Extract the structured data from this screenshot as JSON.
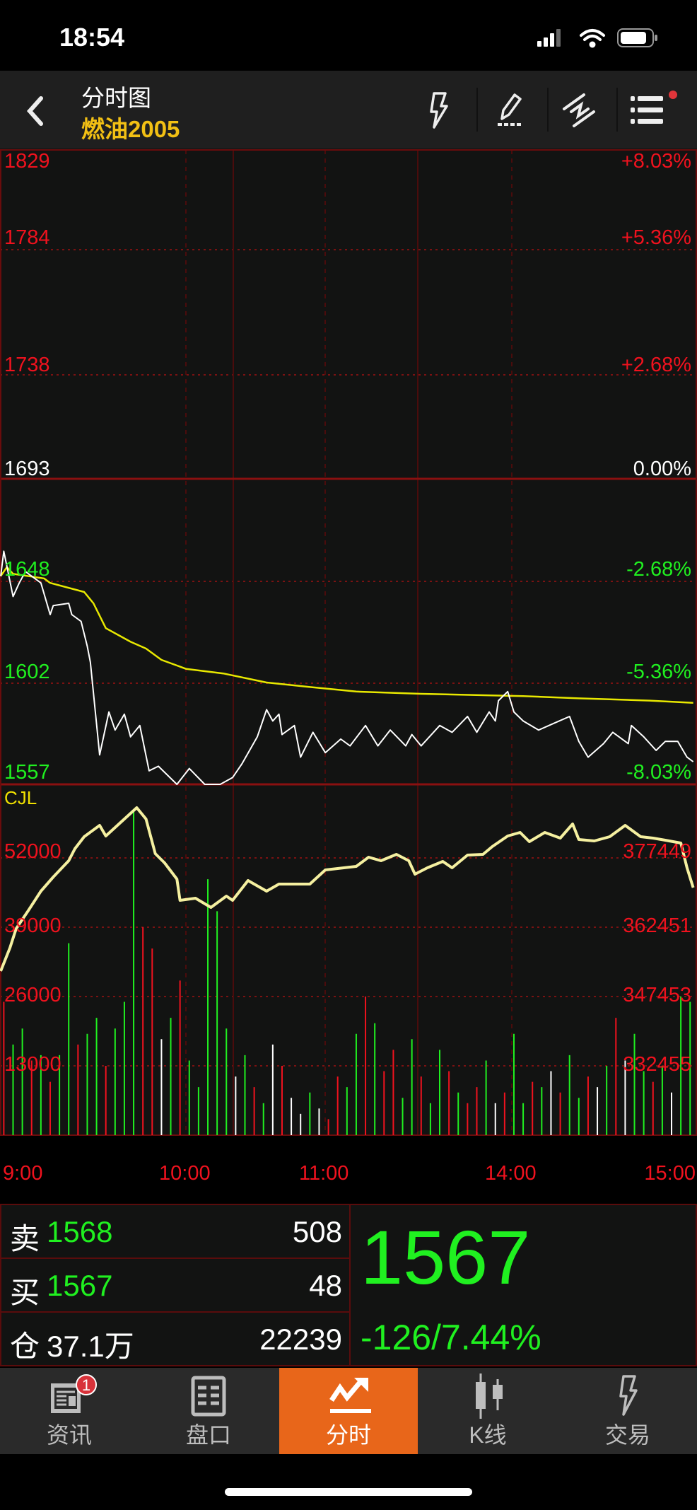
{
  "status_bar": {
    "time": "18:54"
  },
  "header": {
    "title": "分时图",
    "subtitle": "燃油2005",
    "icons": [
      "back-chevron-icon",
      "lightning-icon",
      "pencil-draw-icon",
      "trend-lines-icon",
      "menu-list-icon"
    ]
  },
  "colors": {
    "up": "#f0121e",
    "down": "#20f020",
    "price_line": "#ffffff",
    "avg_line": "#e8e800",
    "oi_line": "#f5f0a0",
    "accent": "#e8661a",
    "subtitle": "#f2c014"
  },
  "chart_data": [
    {
      "type": "line",
      "name": "price",
      "left_ticks": [
        "1829",
        "1784",
        "1738",
        "1693",
        "1648",
        "1602",
        "1557"
      ],
      "right_ticks": [
        "+8.03%",
        "+5.36%",
        "+2.68%",
        "0.00%",
        "-2.68%",
        "-5.36%",
        "-8.03%"
      ],
      "x_ticks": [
        "9:00",
        "10:00",
        "11:00",
        "14:00",
        "15:00"
      ],
      "ylim": [
        1557,
        1829
      ],
      "x_unit": "trading minute (0-225)",
      "price": [
        [
          0,
          1650
        ],
        [
          1,
          1661
        ],
        [
          4,
          1641
        ],
        [
          6,
          1647
        ],
        [
          8,
          1652
        ],
        [
          13,
          1647
        ],
        [
          16,
          1633
        ],
        [
          17,
          1637
        ],
        [
          22,
          1638
        ],
        [
          23,
          1633
        ],
        [
          26,
          1630
        ],
        [
          28,
          1619
        ],
        [
          29,
          1612
        ],
        [
          32,
          1571
        ],
        [
          35,
          1590
        ],
        [
          37,
          1582
        ],
        [
          40,
          1589
        ],
        [
          42,
          1579
        ],
        [
          45,
          1584
        ],
        [
          48,
          1564
        ],
        [
          51,
          1566
        ],
        [
          57,
          1558
        ],
        [
          61,
          1565
        ],
        [
          66,
          1558
        ],
        [
          71,
          1558
        ],
        [
          75,
          1561
        ],
        [
          78,
          1567
        ],
        [
          83,
          1579
        ],
        [
          86,
          1591
        ],
        [
          88,
          1586
        ],
        [
          90,
          1589
        ],
        [
          91,
          1580
        ],
        [
          95,
          1584
        ],
        [
          97,
          1570
        ],
        [
          101,
          1581
        ],
        [
          105,
          1572
        ],
        [
          110,
          1578
        ],
        [
          113,
          1575
        ],
        [
          118,
          1584
        ],
        [
          122,
          1575
        ],
        [
          126,
          1582
        ],
        [
          131,
          1575
        ],
        [
          133,
          1580
        ],
        [
          136,
          1575
        ],
        [
          142,
          1584
        ],
        [
          146,
          1581
        ],
        [
          151,
          1588
        ],
        [
          154,
          1581
        ],
        [
          158,
          1590
        ],
        [
          160,
          1586
        ],
        [
          161,
          1595
        ],
        [
          164,
          1599
        ],
        [
          166,
          1590
        ],
        [
          169,
          1586
        ],
        [
          174,
          1582
        ],
        [
          179,
          1585
        ],
        [
          184,
          1588
        ],
        [
          187,
          1577
        ],
        [
          190,
          1570
        ],
        [
          195,
          1576
        ],
        [
          198,
          1581
        ],
        [
          203,
          1576
        ],
        [
          204,
          1584
        ],
        [
          208,
          1579
        ],
        [
          212,
          1573
        ],
        [
          215,
          1577
        ],
        [
          219,
          1577
        ],
        [
          222,
          1570
        ],
        [
          224,
          1568
        ]
      ],
      "average": [
        [
          0,
          1650
        ],
        [
          2,
          1654
        ],
        [
          4,
          1651
        ],
        [
          14,
          1649
        ],
        [
          16,
          1647
        ],
        [
          27,
          1643
        ],
        [
          30,
          1638
        ],
        [
          34,
          1627
        ],
        [
          42,
          1621
        ],
        [
          47,
          1618
        ],
        [
          52,
          1613
        ],
        [
          60,
          1609
        ],
        [
          72,
          1607
        ],
        [
          86,
          1603
        ],
        [
          100,
          1601
        ],
        [
          115,
          1599
        ],
        [
          136,
          1598
        ],
        [
          169,
          1597
        ],
        [
          187,
          1596
        ],
        [
          210,
          1595
        ],
        [
          224,
          1594
        ]
      ]
    },
    {
      "type": "bar",
      "name": "volume",
      "label": "CJL",
      "left_ticks": [
        "52000",
        "39000",
        "26000",
        "13000"
      ],
      "right_ticks": [
        "377449",
        "362451",
        "347453",
        "332455"
      ],
      "bar_minute_step": 3,
      "volume": [
        [
          25000,
          "r"
        ],
        [
          17000,
          "g"
        ],
        [
          20000,
          "g"
        ],
        [
          14000,
          "r"
        ],
        [
          15000,
          "g"
        ],
        [
          10000,
          "r"
        ],
        [
          15000,
          "g"
        ],
        [
          36000,
          "g"
        ],
        [
          17000,
          "r"
        ],
        [
          19000,
          "g"
        ],
        [
          22000,
          "g"
        ],
        [
          13000,
          "r"
        ],
        [
          20000,
          "g"
        ],
        [
          25000,
          "g"
        ],
        [
          61000,
          "g"
        ],
        [
          39000,
          "r"
        ],
        [
          35000,
          "r"
        ],
        [
          18000,
          "w"
        ],
        [
          22000,
          "g"
        ],
        [
          29000,
          "r"
        ],
        [
          14000,
          "g"
        ],
        [
          9000,
          "g"
        ],
        [
          48000,
          "g"
        ],
        [
          42000,
          "g"
        ],
        [
          20000,
          "g"
        ],
        [
          11000,
          "w"
        ],
        [
          15000,
          "g"
        ],
        [
          9000,
          "r"
        ],
        [
          6000,
          "g"
        ],
        [
          17000,
          "w"
        ],
        [
          13000,
          "r"
        ],
        [
          7000,
          "w"
        ],
        [
          4000,
          "w"
        ],
        [
          8000,
          "g"
        ],
        [
          5000,
          "w"
        ],
        [
          3000,
          "r"
        ],
        [
          11000,
          "r"
        ],
        [
          9000,
          "g"
        ],
        [
          19000,
          "g"
        ],
        [
          26000,
          "r"
        ],
        [
          21000,
          "g"
        ],
        [
          12000,
          "r"
        ],
        [
          16000,
          "r"
        ],
        [
          7000,
          "g"
        ],
        [
          18000,
          "g"
        ],
        [
          11000,
          "r"
        ],
        [
          6000,
          "g"
        ],
        [
          16000,
          "g"
        ],
        [
          12000,
          "r"
        ],
        [
          8000,
          "g"
        ],
        [
          6000,
          "r"
        ],
        [
          9000,
          "r"
        ],
        [
          14000,
          "g"
        ],
        [
          6000,
          "w"
        ],
        [
          8000,
          "r"
        ],
        [
          19000,
          "g"
        ],
        [
          6000,
          "g"
        ],
        [
          10000,
          "r"
        ],
        [
          9000,
          "g"
        ],
        [
          12000,
          "w"
        ],
        [
          8000,
          "r"
        ],
        [
          15000,
          "g"
        ],
        [
          7000,
          "g"
        ],
        [
          11000,
          "r"
        ],
        [
          9000,
          "w"
        ],
        [
          13000,
          "g"
        ],
        [
          22000,
          "r"
        ],
        [
          14000,
          "w"
        ],
        [
          19000,
          "g"
        ],
        [
          12000,
          "g"
        ],
        [
          10000,
          "r"
        ],
        [
          13000,
          "g"
        ],
        [
          8000,
          "w"
        ],
        [
          26000,
          "g"
        ],
        [
          25000,
          "g"
        ]
      ],
      "open_interest": [
        [
          0,
          352962
        ],
        [
          3,
          358013
        ],
        [
          5,
          362145
        ],
        [
          9,
          366124
        ],
        [
          13,
          370256
        ],
        [
          17,
          373317
        ],
        [
          22,
          376837
        ],
        [
          24,
          379439
        ],
        [
          27,
          382040
        ],
        [
          32,
          384489
        ],
        [
          34,
          382193
        ],
        [
          39,
          385254
        ],
        [
          44,
          388315
        ],
        [
          47,
          385866
        ],
        [
          50,
          378367
        ],
        [
          53,
          376378
        ],
        [
          57,
          372857
        ],
        [
          58,
          368266
        ],
        [
          63,
          368725
        ],
        [
          68,
          366736
        ],
        [
          73,
          369184
        ],
        [
          75,
          368266
        ],
        [
          80,
          372552
        ],
        [
          86,
          370256
        ],
        [
          90,
          371787
        ],
        [
          100,
          371787
        ],
        [
          105,
          374847
        ],
        [
          115,
          375612
        ],
        [
          119,
          377602
        ],
        [
          123,
          376837
        ],
        [
          128,
          378214
        ],
        [
          132,
          376837
        ],
        [
          134,
          373929
        ],
        [
          138,
          375306
        ],
        [
          143,
          376684
        ],
        [
          146,
          375306
        ],
        [
          151,
          378061
        ],
        [
          156,
          378214
        ],
        [
          159,
          379898
        ],
        [
          164,
          382193
        ],
        [
          168,
          382958
        ],
        [
          171,
          380969
        ],
        [
          176,
          382958
        ],
        [
          181,
          381734
        ],
        [
          185,
          384795
        ],
        [
          187,
          381428
        ],
        [
          192,
          381122
        ],
        [
          197,
          382040
        ],
        [
          202,
          384489
        ],
        [
          207,
          382040
        ],
        [
          211,
          381734
        ],
        [
          215,
          381275
        ],
        [
          220,
          380663
        ],
        [
          222,
          375306
        ],
        [
          224,
          371021
        ]
      ]
    }
  ],
  "quote": {
    "sell_label": "卖",
    "sell_price": "1568",
    "sell_qty": "508",
    "buy_label": "买",
    "buy_price": "1567",
    "buy_qty": "48",
    "oi_label": "仓",
    "oi_value": "37.1万",
    "oi_change": "22239",
    "last_price": "1567",
    "change": "-126/7.44%"
  },
  "tabs": [
    {
      "label": "资讯",
      "badge": "1"
    },
    {
      "label": "盘口"
    },
    {
      "label": "分时",
      "active": true
    },
    {
      "label": "K线"
    },
    {
      "label": "交易"
    }
  ]
}
